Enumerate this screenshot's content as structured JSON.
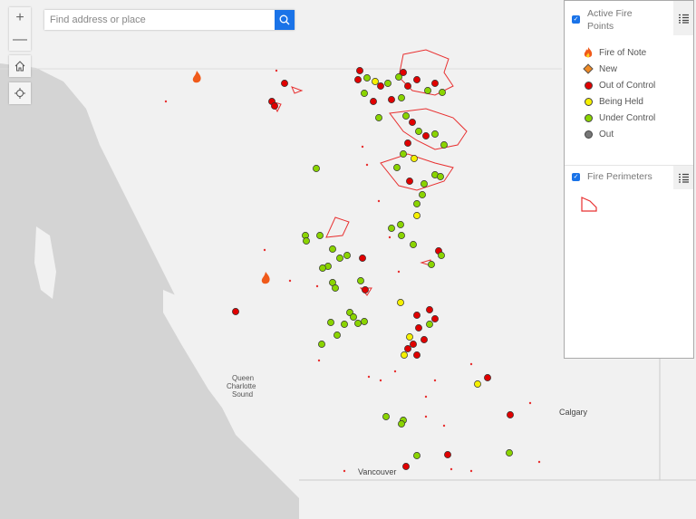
{
  "search": {
    "placeholder": "Find address or place"
  },
  "controls": {
    "zoom_in": "+",
    "zoom_out": "—"
  },
  "map_labels": {
    "queen": "Queen",
    "charlotte": "Charlotte",
    "sound": "Sound",
    "calgary": "Calgary",
    "vancouver": "Vancouver"
  },
  "legend": {
    "layers": [
      {
        "title": "Active Fire Points",
        "checked": true,
        "items": [
          {
            "label": "Fire of Note",
            "icon": "flame-icon"
          },
          {
            "label": "New",
            "color": "#f08a24"
          },
          {
            "label": "Out of Control",
            "color": "#e00000"
          },
          {
            "label": "Being Held",
            "color": "#f5f000"
          },
          {
            "label": "Under Control",
            "color": "#8ad400"
          },
          {
            "label": "Out",
            "color": "#777777"
          }
        ]
      },
      {
        "title": "Fire Perimeters",
        "checked": true,
        "symbol_color": "#e83030"
      }
    ]
  },
  "colors": {
    "land": "#f1f1f1",
    "water": "#d4d4d4",
    "perimeter": "#e83030"
  }
}
